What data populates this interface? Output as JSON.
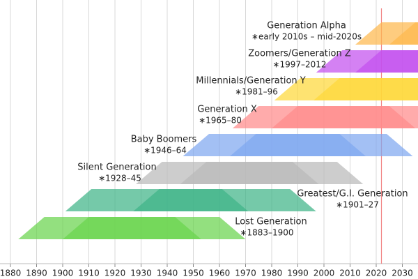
{
  "chart_data": {
    "type": "generation-timeline",
    "xlim": [
      1876,
      2036
    ],
    "xticks": [
      1880,
      1890,
      1900,
      1910,
      1920,
      1930,
      1940,
      1950,
      1960,
      1970,
      1980,
      1990,
      2000,
      2010,
      2020,
      2030
    ],
    "marker": 2022,
    "marker_color": "#f08080",
    "grid": true,
    "generations": [
      {
        "name": "Generation Alpha",
        "years": "∗early 2010s – mid-2020s",
        "start": 2012,
        "end": 2025,
        "color": "#fdb84d"
      },
      {
        "name": "Zoomers/Generation Z",
        "years": "∗1997–2012",
        "start": 1997,
        "end": 2012,
        "color": "#c450ee"
      },
      {
        "name": "Millennials/Generation Y",
        "years": "∗1981–96",
        "start": 1981,
        "end": 1996,
        "color": "#fdd83a"
      },
      {
        "name": "Generation X",
        "years": "∗1965–80",
        "start": 1965,
        "end": 1980,
        "color": "#ff8a8a"
      },
      {
        "name": "Baby Boomers",
        "years": "∗1946–64",
        "start": 1946,
        "end": 1964,
        "color": "#80a8f0"
      },
      {
        "name": "Silent Generation",
        "years": "∗1928–45",
        "start": 1928,
        "end": 1945,
        "color": "#bababa"
      },
      {
        "name": "Greatest/G.I. Generation",
        "years": "∗1901–27",
        "start": 1901,
        "end": 1927,
        "color": "#40b488"
      },
      {
        "name": "Lost Generation",
        "years": "∗1883–1900",
        "start": 1883,
        "end": 1900,
        "color": "#6ad44e"
      }
    ]
  }
}
